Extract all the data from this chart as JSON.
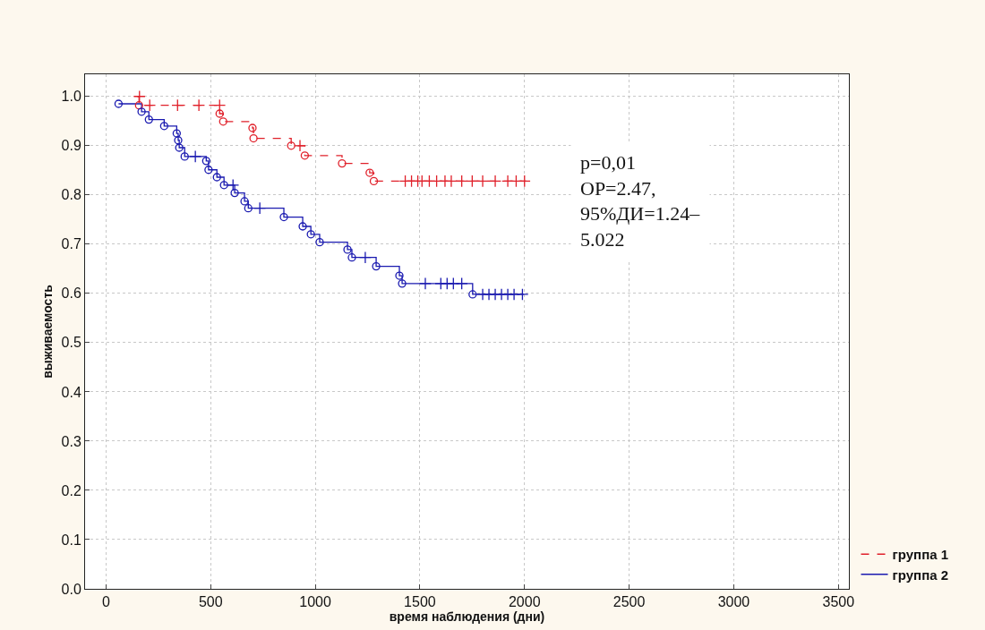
{
  "chart_data": {
    "type": "step",
    "xlabel": "время наблюдения (дни)",
    "ylabel": "выживаемость",
    "xlim": [
      -100,
      3550
    ],
    "xticks": [
      0,
      500,
      1000,
      1500,
      2000,
      2500,
      3000,
      3500
    ],
    "ylim": [
      0,
      1.045
    ],
    "yticks": [
      {
        "value": 0,
        "label": "0.0"
      },
      0.1,
      0.2,
      0.3,
      0.4,
      0.5,
      0.6,
      0.7,
      0.8,
      0.9,
      {
        "value": 1,
        "label": "1.0"
      }
    ],
    "grid": true,
    "legend": "bottom right",
    "annotations": [
      "p=0,01\nОР=2.47,\n95%ДИ=1.24–\n5.022"
    ],
    "series": [
      {
        "name": "группа 1",
        "color": "#e0202a",
        "line_style": "dashed",
        "x": [
          150,
          158,
          543,
          560,
          700,
          705,
          885,
          950,
          1128,
          1260,
          1280,
          2008
        ],
        "values": [
          1.0,
          0.982,
          0.965,
          0.949,
          0.936,
          0.915,
          0.9,
          0.88,
          0.864,
          0.845,
          0.828,
          0.828
        ]
      },
      {
        "name": "группа 2",
        "color": "#1a1ab0",
        "line_style": "solid",
        "x": [
          60,
          170,
          205,
          278,
          338,
          345,
          350,
          376,
          479,
          490,
          530,
          564,
          615,
          662,
          680,
          850,
          940,
          979,
          1021,
          1154,
          1175,
          1291,
          1402,
          1415,
          1752,
          1996
        ],
        "values": [
          0.985,
          0.969,
          0.953,
          0.94,
          0.925,
          0.911,
          0.896,
          0.878,
          0.869,
          0.851,
          0.836,
          0.82,
          0.804,
          0.787,
          0.773,
          0.755,
          0.736,
          0.72,
          0.704,
          0.689,
          0.673,
          0.655,
          0.636,
          0.62,
          0.598,
          0.598
        ]
      },
      {
        "type": "scatter",
        "marker": "circle",
        "color": "#e0202a",
        "x": [
          158,
          543,
          560,
          700,
          705,
          885,
          950,
          1128,
          1260,
          1280
        ],
        "values": [
          0.982,
          0.965,
          0.949,
          0.936,
          0.915,
          0.9,
          0.88,
          0.864,
          0.845,
          0.828
        ]
      },
      {
        "type": "scatter",
        "marker": "cross",
        "color": "#e0202a",
        "x": [
          160,
          209,
          342,
          444,
          543,
          927,
          1430,
          1460,
          1490,
          1510,
          1545,
          1580,
          1620,
          1650,
          1700,
          1750,
          1800,
          1860,
          1920,
          1960,
          2000
        ],
        "values": [
          1.0,
          0.982,
          0.982,
          0.982,
          0.982,
          0.9,
          0.828,
          0.828,
          0.828,
          0.828,
          0.828,
          0.828,
          0.828,
          0.828,
          0.828,
          0.828,
          0.828,
          0.828,
          0.828,
          0.828,
          0.828
        ]
      },
      {
        "type": "scatter",
        "marker": "circle",
        "color": "#1a1ab0",
        "x": [
          60,
          170,
          205,
          278,
          338,
          345,
          350,
          376,
          479,
          490,
          530,
          564,
          615,
          662,
          680,
          850,
          940,
          979,
          1021,
          1154,
          1175,
          1291,
          1402,
          1415,
          1752
        ],
        "values": [
          0.985,
          0.969,
          0.953,
          0.94,
          0.925,
          0.911,
          0.896,
          0.878,
          0.869,
          0.851,
          0.836,
          0.82,
          0.804,
          0.787,
          0.773,
          0.755,
          0.736,
          0.72,
          0.704,
          0.689,
          0.673,
          0.655,
          0.636,
          0.62,
          0.598
        ]
      },
      {
        "type": "scatter",
        "marker": "cross",
        "color": "#1a1ab0",
        "x": [
          427,
          607,
          735,
          1239,
          1526,
          1600,
          1630,
          1660,
          1700,
          1800,
          1830,
          1860,
          1890,
          1920,
          1950,
          1990
        ],
        "values": [
          0.878,
          0.82,
          0.773,
          0.673,
          0.62,
          0.62,
          0.62,
          0.62,
          0.62,
          0.598,
          0.598,
          0.598,
          0.598,
          0.598,
          0.598,
          0.598
        ]
      }
    ]
  }
}
